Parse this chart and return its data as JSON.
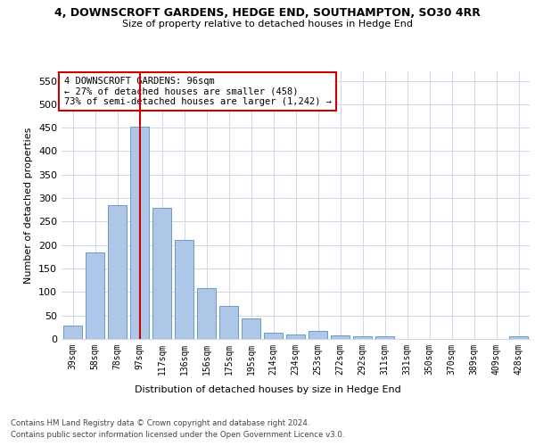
{
  "title": "4, DOWNSCROFT GARDENS, HEDGE END, SOUTHAMPTON, SO30 4RR",
  "subtitle": "Size of property relative to detached houses in Hedge End",
  "xlabel": "Distribution of detached houses by size in Hedge End",
  "ylabel": "Number of detached properties",
  "categories": [
    "39sqm",
    "58sqm",
    "78sqm",
    "97sqm",
    "117sqm",
    "136sqm",
    "156sqm",
    "175sqm",
    "195sqm",
    "214sqm",
    "234sqm",
    "253sqm",
    "272sqm",
    "292sqm",
    "311sqm",
    "331sqm",
    "350sqm",
    "370sqm",
    "389sqm",
    "409sqm",
    "428sqm"
  ],
  "values": [
    28,
    185,
    285,
    453,
    280,
    211,
    109,
    70,
    44,
    13,
    10,
    18,
    7,
    5,
    5,
    0,
    0,
    0,
    0,
    0,
    5
  ],
  "bar_color": "#aec6e8",
  "bar_edge_color": "#5a8fc2",
  "highlight_index": 3,
  "highlight_line_color": "#cc0000",
  "annotation_text": "4 DOWNSCROFT GARDENS: 96sqm\n← 27% of detached houses are smaller (458)\n73% of semi-detached houses are larger (1,242) →",
  "annotation_box_color": "#ffffff",
  "annotation_box_edge": "#cc0000",
  "ylim": [
    0,
    570
  ],
  "yticks": [
    0,
    50,
    100,
    150,
    200,
    250,
    300,
    350,
    400,
    450,
    500,
    550
  ],
  "footer1": "Contains HM Land Registry data © Crown copyright and database right 2024.",
  "footer2": "Contains public sector information licensed under the Open Government Licence v3.0.",
  "bg_color": "#ffffff",
  "grid_color": "#d0d8e8"
}
